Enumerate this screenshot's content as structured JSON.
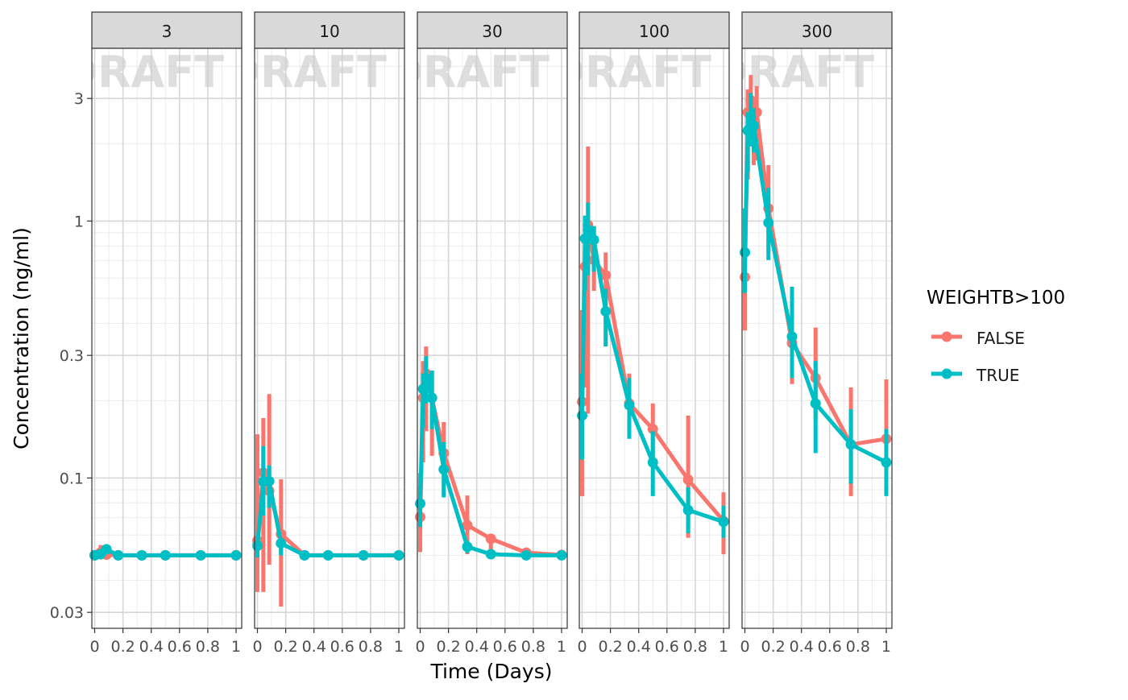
{
  "chart_data": {
    "type": "line",
    "facet_panels": [
      "3",
      "10",
      "30",
      "100",
      "300"
    ],
    "watermark": "DRAFT",
    "xlabel": "Time (Days)",
    "ylabel": "Concentration (ng/ml)",
    "x_ticks": [
      "0",
      "0.2",
      "0.4",
      "0.6",
      "0.8",
      "1"
    ],
    "y_ticks": [
      "0.03",
      "0.1",
      "0.3",
      "1",
      "3"
    ],
    "y_scale": "log10",
    "ylim": [
      0.026,
      4.7
    ],
    "xlim": [
      -0.02,
      1.04
    ],
    "grid": true,
    "legend": {
      "title": "WEIGHTB>100",
      "position": "right",
      "entries": [
        {
          "label": "FALSE",
          "color": "#F8766D"
        },
        {
          "label": "TRUE",
          "color": "#00BFC4"
        }
      ]
    },
    "panels": [
      {
        "label": "3",
        "series": [
          {
            "name": "FALSE",
            "color": "#F8766D",
            "points": [
              {
                "x": 0,
                "y": 0.05,
                "lo": 0.05,
                "hi": 0.05
              },
              {
                "x": 0.0417,
                "y": 0.0513,
                "lo": 0.0497,
                "hi": 0.0548
              },
              {
                "x": 0.0833,
                "y": 0.0503,
                "lo": 0.0497,
                "hi": 0.0515
              },
              {
                "x": 0.1667,
                "y": 0.05,
                "lo": 0.05,
                "hi": 0.05
              },
              {
                "x": 0.3333,
                "y": 0.05,
                "lo": 0.05,
                "hi": 0.05
              },
              {
                "x": 0.5,
                "y": 0.05,
                "lo": 0.05,
                "hi": 0.05
              },
              {
                "x": 0.75,
                "y": 0.05,
                "lo": 0.05,
                "hi": 0.05
              },
              {
                "x": 1,
                "y": 0.05,
                "lo": 0.05,
                "hi": 0.05
              }
            ]
          },
          {
            "name": "TRUE",
            "color": "#00BFC4",
            "points": [
              {
                "x": 0,
                "y": 0.05,
                "lo": 0.05,
                "hi": 0.05
              },
              {
                "x": 0.0417,
                "y": 0.0505,
                "lo": 0.0497,
                "hi": 0.0515
              },
              {
                "x": 0.0833,
                "y": 0.0528,
                "lo": 0.0505,
                "hi": 0.054
              },
              {
                "x": 0.1667,
                "y": 0.05,
                "lo": 0.05,
                "hi": 0.05
              },
              {
                "x": 0.3333,
                "y": 0.05,
                "lo": 0.05,
                "hi": 0.05
              },
              {
                "x": 0.5,
                "y": 0.05,
                "lo": 0.05,
                "hi": 0.05
              },
              {
                "x": 0.75,
                "y": 0.05,
                "lo": 0.05,
                "hi": 0.05
              },
              {
                "x": 1,
                "y": 0.05,
                "lo": 0.05,
                "hi": 0.05
              }
            ]
          }
        ]
      },
      {
        "label": "10",
        "series": [
          {
            "name": "FALSE",
            "color": "#F8766D",
            "points": [
              {
                "x": 0,
                "y": 0.057,
                "lo": 0.036,
                "hi": 0.148
              },
              {
                "x": 0.0417,
                "y": 0.105,
                "lo": 0.036,
                "hi": 0.171
              },
              {
                "x": 0.0833,
                "y": 0.089,
                "lo": 0.046,
                "hi": 0.212
              },
              {
                "x": 0.1667,
                "y": 0.0605,
                "lo": 0.0316,
                "hi": 0.0988
              },
              {
                "x": 0.3333,
                "y": 0.05,
                "lo": 0.05,
                "hi": 0.05
              },
              {
                "x": 0.5,
                "y": 0.05,
                "lo": 0.05,
                "hi": 0.05
              },
              {
                "x": 0.75,
                "y": 0.05,
                "lo": 0.05,
                "hi": 0.05
              },
              {
                "x": 1,
                "y": 0.05,
                "lo": 0.05,
                "hi": 0.05
              }
            ]
          },
          {
            "name": "TRUE",
            "color": "#00BFC4",
            "points": [
              {
                "x": 0,
                "y": 0.0545,
                "lo": 0.049,
                "hi": 0.0565
              },
              {
                "x": 0.0417,
                "y": 0.0968,
                "lo": 0.0715,
                "hi": 0.133
              },
              {
                "x": 0.0833,
                "y": 0.0972,
                "lo": 0.0765,
                "hi": 0.112
              },
              {
                "x": 0.1667,
                "y": 0.0557,
                "lo": 0.05,
                "hi": 0.0585
              },
              {
                "x": 0.3333,
                "y": 0.05,
                "lo": 0.05,
                "hi": 0.05
              },
              {
                "x": 0.5,
                "y": 0.05,
                "lo": 0.05,
                "hi": 0.05
              },
              {
                "x": 0.75,
                "y": 0.05,
                "lo": 0.05,
                "hi": 0.05
              },
              {
                "x": 1,
                "y": 0.05,
                "lo": 0.05,
                "hi": 0.05
              }
            ]
          }
        ]
      },
      {
        "label": "30",
        "series": [
          {
            "name": "FALSE",
            "color": "#F8766D",
            "points": [
              {
                "x": 0,
                "y": 0.0705,
                "lo": 0.0515,
                "hi": 0.1045
              },
              {
                "x": 0.0208,
                "y": 0.205,
                "lo": 0.115,
                "hi": 0.285
              },
              {
                "x": 0.0417,
                "y": 0.255,
                "lo": 0.152,
                "hi": 0.325
              },
              {
                "x": 0.0833,
                "y": 0.205,
                "lo": 0.122,
                "hi": 0.249
              },
              {
                "x": 0.1667,
                "y": 0.125,
                "lo": 0.085,
                "hi": 0.165
              },
              {
                "x": 0.3333,
                "y": 0.0655,
                "lo": 0.0505,
                "hi": 0.0855
              },
              {
                "x": 0.5,
                "y": 0.058,
                "lo": 0.0485,
                "hi": 0.0575
              },
              {
                "x": 0.75,
                "y": 0.0512,
                "lo": 0.0485,
                "hi": 0.0525
              },
              {
                "x": 1,
                "y": 0.0502,
                "lo": 0.0502,
                "hi": 0.0502
              }
            ]
          },
          {
            "name": "TRUE",
            "color": "#00BFC4",
            "points": [
              {
                "x": 0,
                "y": 0.0795,
                "lo": 0.0645,
                "hi": 0.0925
              },
              {
                "x": 0.0208,
                "y": 0.222,
                "lo": 0.157,
                "hi": 0.255
              },
              {
                "x": 0.0417,
                "y": 0.245,
                "lo": 0.195,
                "hi": 0.298
              },
              {
                "x": 0.0833,
                "y": 0.205,
                "lo": 0.155,
                "hi": 0.262
              },
              {
                "x": 0.1667,
                "y": 0.108,
                "lo": 0.084,
                "hi": 0.138
              },
              {
                "x": 0.3333,
                "y": 0.054,
                "lo": 0.051,
                "hi": 0.057
              },
              {
                "x": 0.5,
                "y": 0.0505,
                "lo": 0.0505,
                "hi": 0.0505
              },
              {
                "x": 0.75,
                "y": 0.05,
                "lo": 0.05,
                "hi": 0.05
              },
              {
                "x": 1,
                "y": 0.05,
                "lo": 0.05,
                "hi": 0.05
              }
            ]
          }
        ]
      },
      {
        "label": "100",
        "series": [
          {
            "name": "FALSE",
            "color": "#F8766D",
            "points": [
              {
                "x": 0,
                "y": 0.198,
                "lo": 0.085,
                "hi": 0.45
              },
              {
                "x": 0.0208,
                "y": 0.665,
                "lo": 0.225,
                "hi": 0.885
              },
              {
                "x": 0.0417,
                "y": 0.965,
                "lo": 0.178,
                "hi": 1.95
              },
              {
                "x": 0.0833,
                "y": 0.705,
                "lo": 0.535,
                "hi": 0.955
              },
              {
                "x": 0.1667,
                "y": 0.615,
                "lo": 0.325,
                "hi": 0.755
              },
              {
                "x": 0.3333,
                "y": 0.195,
                "lo": 0.148,
                "hi": 0.255
              },
              {
                "x": 0.5,
                "y": 0.155,
                "lo": 0.114,
                "hi": 0.195
              },
              {
                "x": 0.75,
                "y": 0.0985,
                "lo": 0.0585,
                "hi": 0.175
              },
              {
                "x": 1,
                "y": 0.068,
                "lo": 0.0505,
                "hi": 0.088
              }
            ]
          },
          {
            "name": "TRUE",
            "color": "#00BFC4",
            "points": [
              {
                "x": 0,
                "y": 0.175,
                "lo": 0.118,
                "hi": 0.255
              },
              {
                "x": 0.0208,
                "y": 0.855,
                "lo": 0.535,
                "hi": 1.05
              },
              {
                "x": 0.0417,
                "y": 0.925,
                "lo": 0.615,
                "hi": 1.18
              },
              {
                "x": 0.0833,
                "y": 0.845,
                "lo": 0.635,
                "hi": 0.955
              },
              {
                "x": 0.1667,
                "y": 0.445,
                "lo": 0.325,
                "hi": 0.545
              },
              {
                "x": 0.3333,
                "y": 0.192,
                "lo": 0.142,
                "hi": 0.245
              },
              {
                "x": 0.5,
                "y": 0.115,
                "lo": 0.085,
                "hi": 0.152
              },
              {
                "x": 0.75,
                "y": 0.075,
                "lo": 0.061,
                "hi": 0.092
              },
              {
                "x": 1,
                "y": 0.0675,
                "lo": 0.0585,
                "hi": 0.078
              }
            ]
          }
        ]
      },
      {
        "label": "300",
        "series": [
          {
            "name": "FALSE",
            "color": "#F8766D",
            "points": [
              {
                "x": 0,
                "y": 0.605,
                "lo": 0.375,
                "hi": 1.02
              },
              {
                "x": 0.0208,
                "y": 2.65,
                "lo": 1.45,
                "hi": 3.25
              },
              {
                "x": 0.0417,
                "y": 2.95,
                "lo": 2.25,
                "hi": 3.7
              },
              {
                "x": 0.0625,
                "y": 2.25,
                "lo": 1.65,
                "hi": 2.85
              },
              {
                "x": 0.0833,
                "y": 2.65,
                "lo": 1.72,
                "hi": 3.35
              },
              {
                "x": 0.1667,
                "y": 1.12,
                "lo": 0.755,
                "hi": 1.65
              },
              {
                "x": 0.3333,
                "y": 0.335,
                "lo": 0.232,
                "hi": 0.355
              },
              {
                "x": 0.5,
                "y": 0.245,
                "lo": 0.168,
                "hi": 0.385
              },
              {
                "x": 0.75,
                "y": 0.135,
                "lo": 0.085,
                "hi": 0.225
              },
              {
                "x": 1,
                "y": 0.142,
                "lo": 0.118,
                "hi": 0.242
              }
            ]
          },
          {
            "name": "TRUE",
            "color": "#00BFC4",
            "points": [
              {
                "x": 0,
                "y": 0.755,
                "lo": 0.525,
                "hi": 1.12
              },
              {
                "x": 0.0208,
                "y": 2.25,
                "lo": 1.55,
                "hi": 2.65
              },
              {
                "x": 0.0417,
                "y": 2.55,
                "lo": 1.95,
                "hi": 3.15
              },
              {
                "x": 0.0625,
                "y": 2.35,
                "lo": 1.85,
                "hi": 2.75
              },
              {
                "x": 0.1667,
                "y": 0.985,
                "lo": 0.705,
                "hi": 1.35
              },
              {
                "x": 0.3333,
                "y": 0.355,
                "lo": 0.245,
                "hi": 0.555
              },
              {
                "x": 0.5,
                "y": 0.195,
                "lo": 0.125,
                "hi": 0.285
              },
              {
                "x": 0.75,
                "y": 0.135,
                "lo": 0.095,
                "hi": 0.185
              },
              {
                "x": 1,
                "y": 0.115,
                "lo": 0.085,
                "hi": 0.155
              }
            ]
          }
        ]
      }
    ]
  }
}
